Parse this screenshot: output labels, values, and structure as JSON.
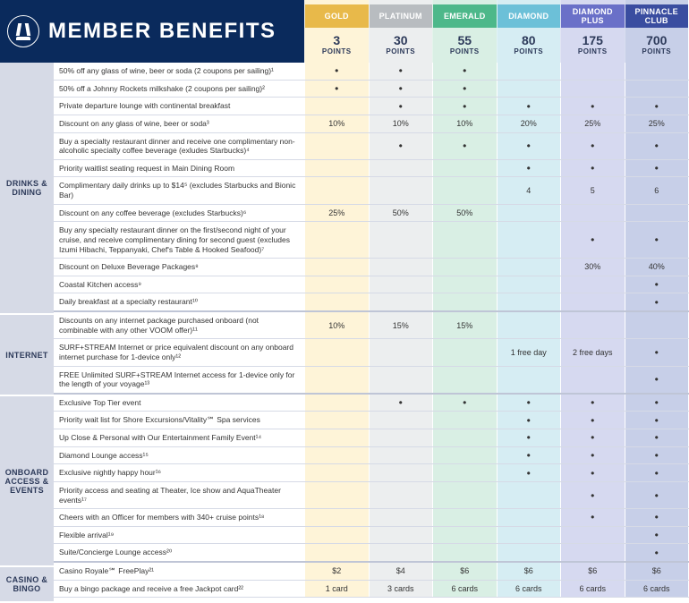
{
  "title": "MEMBER BENEFITS",
  "tiers": [
    {
      "name": "GOLD",
      "points": "3",
      "nameBg": "#e8b94a",
      "colBg": "#fef4d8"
    },
    {
      "name": "PLATINUM",
      "points": "30",
      "nameBg": "#b8bcc0",
      "colBg": "#eceeef"
    },
    {
      "name": "EMERALD",
      "points": "55",
      "nameBg": "#4db88a",
      "colBg": "#d9efe4"
    },
    {
      "name": "DIAMOND",
      "points": "80",
      "nameBg": "#6cc0d8",
      "colBg": "#d6edf3"
    },
    {
      "name": "DIAMOND PLUS",
      "points": "175",
      "nameBg": "#6a70c8",
      "colBg": "#d6d9f0"
    },
    {
      "name": "PINNACLE CLUB",
      "points": "700",
      "nameBg": "#3a4da0",
      "colBg": "#c7cfe8"
    }
  ],
  "pointsLabel": "POINTS",
  "tierTextColors": {
    "points": "#2d3a5a",
    "pointsLabel": "#2d3a5a"
  },
  "categories": [
    {
      "label": "DRINKS & DINING",
      "rows": [
        {
          "benefit": "50% off any glass of wine, beer or soda (2 coupons per sailing)¹",
          "values": [
            "•",
            "•",
            "•",
            "",
            "",
            ""
          ]
        },
        {
          "benefit": "50% off a Johnny Rockets milkshake (2 coupons per sailing)²",
          "values": [
            "•",
            "•",
            "•",
            "",
            "",
            ""
          ]
        },
        {
          "benefit": "Private departure lounge with continental breakfast",
          "values": [
            "",
            "•",
            "•",
            "•",
            "•",
            "•"
          ]
        },
        {
          "benefit": "Discount on any glass of wine, beer or soda³",
          "values": [
            "10%",
            "10%",
            "10%",
            "20%",
            "25%",
            "25%"
          ]
        },
        {
          "benefit": "Buy a specialty restaurant dinner and receive one complimentary non-alcoholic specialty coffee beverage (exludes Starbucks)⁴",
          "values": [
            "",
            "•",
            "•",
            "•",
            "•",
            "•"
          ]
        },
        {
          "benefit": "Priority waitlist seating request in Main Dining Room",
          "values": [
            "",
            "",
            "",
            "•",
            "•",
            "•"
          ]
        },
        {
          "benefit": "Complimentary daily drinks up to $14⁵ (excludes Starbucks and Bionic Bar)",
          "values": [
            "",
            "",
            "",
            "4",
            "5",
            "6"
          ]
        },
        {
          "benefit": "Discount on any coffee beverage (excludes Starbucks)⁶",
          "values": [
            "25%",
            "50%",
            "50%",
            "",
            "",
            ""
          ]
        },
        {
          "benefit": "Buy any specialty restaurant dinner on the first/second night of your cruise, and receive complimentary dining for second guest (excludes Izumi Hibachi, Teppanyaki, Chef's Table & Hooked Seafood)⁷",
          "values": [
            "",
            "",
            "",
            "",
            "•",
            "•"
          ]
        },
        {
          "benefit": "Discount on Deluxe Beverage Packages⁸",
          "values": [
            "",
            "",
            "",
            "",
            "30%",
            "40%"
          ]
        },
        {
          "benefit": "Coastal Kitchen access⁹",
          "values": [
            "",
            "",
            "",
            "",
            "",
            "•"
          ]
        },
        {
          "benefit": "Daily breakfast at a specialty restaurant¹⁰",
          "values": [
            "",
            "",
            "",
            "",
            "",
            "•"
          ]
        }
      ]
    },
    {
      "label": "INTERNET",
      "rows": [
        {
          "benefit": "Discounts on any internet package purchased onboard (not combinable with any other VOOM offer)¹¹",
          "values": [
            "10%",
            "15%",
            "15%",
            "",
            "",
            ""
          ]
        },
        {
          "benefit": "SURF+STREAM Internet or price equivalent discount on any onboard internet purchase for 1-device only¹²",
          "values": [
            "",
            "",
            "",
            "1 free day",
            "2 free days",
            "•"
          ]
        },
        {
          "benefit": "FREE Unlimited SURF+STREAM Internet access for 1-device only for the length of your voyage¹³",
          "values": [
            "",
            "",
            "",
            "",
            "",
            "•"
          ]
        }
      ]
    },
    {
      "label": "ONBOARD ACCESS & EVENTS",
      "rows": [
        {
          "benefit": "Exclusive Top Tier event",
          "values": [
            "",
            "•",
            "•",
            "•",
            "•",
            "•"
          ]
        },
        {
          "benefit": "Priority wait list for Shore Excursions/Vitality℠ Spa services",
          "values": [
            "",
            "",
            "",
            "•",
            "•",
            "•"
          ]
        },
        {
          "benefit": "Up Close & Personal with Our Entertainment Family Event¹⁴",
          "values": [
            "",
            "",
            "",
            "•",
            "•",
            "•"
          ]
        },
        {
          "benefit": "Diamond Lounge access¹⁵",
          "values": [
            "",
            "",
            "",
            "•",
            "•",
            "•"
          ]
        },
        {
          "benefit": "Exclusive nightly happy hour¹⁶",
          "values": [
            "",
            "",
            "",
            "•",
            "•",
            "•"
          ]
        },
        {
          "benefit": "Priority access and seating at Theater, Ice show and AquaTheater events¹⁷",
          "values": [
            "",
            "",
            "",
            "",
            "•",
            "•"
          ]
        },
        {
          "benefit": "Cheers with an Officer for members with 340+ cruise points¹⁸",
          "values": [
            "",
            "",
            "",
            "",
            "•",
            "•"
          ]
        },
        {
          "benefit": "Flexible arrival¹⁹",
          "values": [
            "",
            "",
            "",
            "",
            "",
            "•"
          ]
        },
        {
          "benefit": "Suite/Concierge Lounge access²⁰",
          "values": [
            "",
            "",
            "",
            "",
            "",
            "•"
          ]
        }
      ]
    },
    {
      "label": "CASINO & BINGO",
      "rows": [
        {
          "benefit": "Casino Royale℠ FreePlay²¹",
          "values": [
            "$2",
            "$4",
            "$6",
            "$6",
            "$6",
            "$6"
          ]
        },
        {
          "benefit": "Buy a bingo package and receive a free Jackpot card²²",
          "values": [
            "1 card",
            "3 cards",
            "6 cards",
            "6 cards",
            "6 cards",
            "6 cards"
          ]
        }
      ]
    }
  ]
}
